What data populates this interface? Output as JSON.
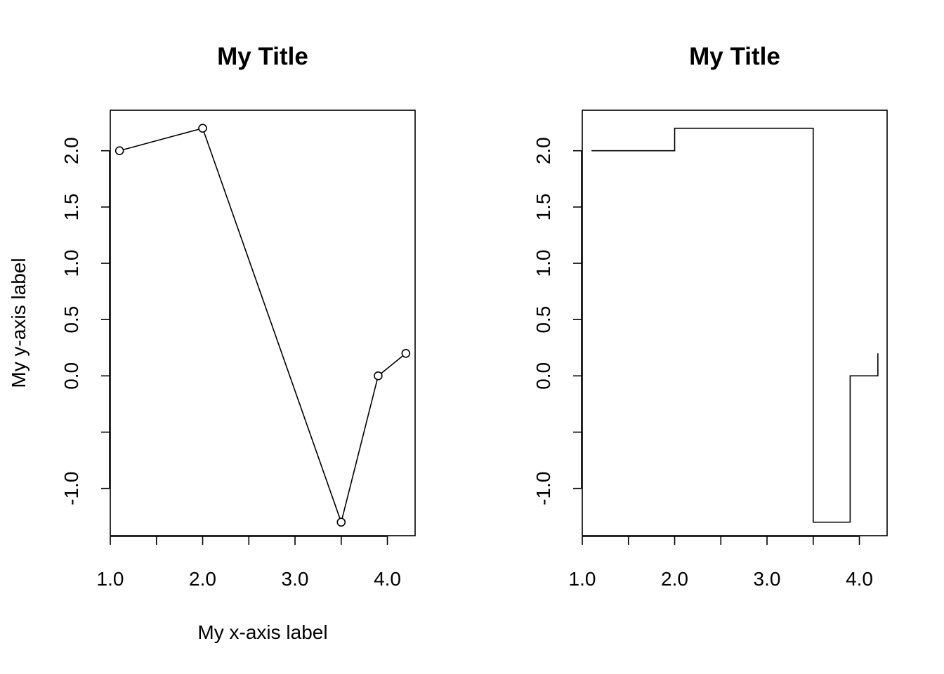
{
  "chart_data": [
    {
      "type": "line",
      "line_style": "both",
      "title": "My Title",
      "xlabel": "My x-axis label",
      "ylabel": "My y-axis label",
      "x": [
        1.1,
        2.0,
        3.5,
        3.9,
        4.2
      ],
      "y": [
        2.0,
        2.2,
        -1.3,
        0.0,
        0.2
      ],
      "xlim": [
        1.0,
        4.3
      ],
      "ylim": [
        -1.42,
        2.36
      ],
      "x_ticks": [
        1.0,
        1.5,
        2.0,
        2.5,
        3.0,
        3.5,
        4.0
      ],
      "x_tick_labels": [
        "1.0",
        "",
        "2.0",
        "",
        "3.0",
        "",
        "4.0"
      ],
      "y_ticks": [
        -1.0,
        -0.5,
        0.0,
        0.5,
        1.0,
        1.5,
        2.0
      ],
      "y_tick_labels": [
        "-1.0",
        "",
        "0.0",
        "0.5",
        "1.0",
        "1.5",
        "2.0"
      ],
      "grid": false,
      "color": "#000000"
    },
    {
      "type": "line",
      "line_style": "step",
      "title": "My Title",
      "xlabel": "",
      "ylabel": "",
      "x": [
        1.1,
        2.0,
        3.5,
        3.9,
        4.2
      ],
      "y": [
        2.0,
        2.2,
        -1.3,
        0.0,
        0.2
      ],
      "xlim": [
        1.0,
        4.3
      ],
      "ylim": [
        -1.42,
        2.36
      ],
      "x_ticks": [
        1.0,
        1.5,
        2.0,
        2.5,
        3.0,
        3.5,
        4.0
      ],
      "x_tick_labels": [
        "1.0",
        "",
        "2.0",
        "",
        "3.0",
        "",
        "4.0"
      ],
      "y_ticks": [
        -1.0,
        -0.5,
        0.0,
        0.5,
        1.0,
        1.5,
        2.0
      ],
      "y_tick_labels": [
        "-1.0",
        "",
        "0.0",
        "0.5",
        "1.0",
        "1.5",
        "2.0"
      ],
      "grid": false,
      "color": "#000000"
    }
  ]
}
